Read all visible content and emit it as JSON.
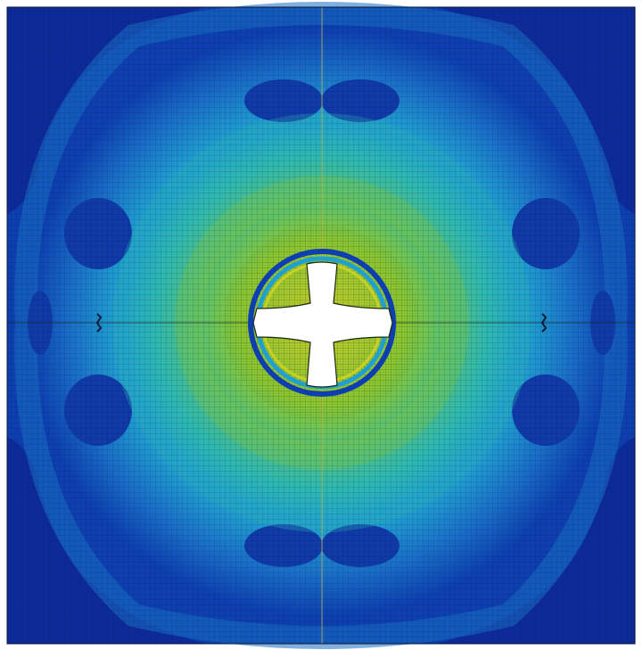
{
  "image": {
    "kind": "finite-element stress contour plot",
    "colormap": [
      "#0a1f8a",
      "#0d3fb0",
      "#1a70c8",
      "#20a0d0",
      "#2fb8b0",
      "#58c070",
      "#8cc830",
      "#c8d028"
    ],
    "background": "#ffffff",
    "mesh_line_color": "#0b1a3a",
    "center_hole_shape": "cross",
    "center_hole_color": "#ffffff",
    "symmetry_line_color": "#c8c050"
  }
}
